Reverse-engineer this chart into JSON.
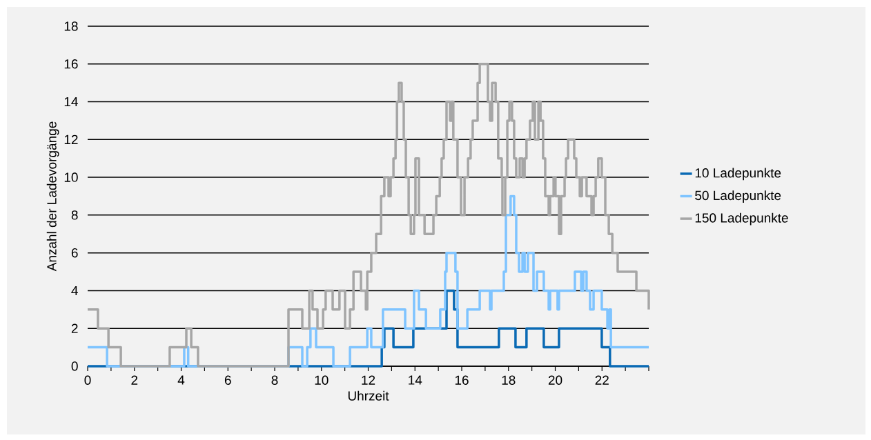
{
  "chart_data": {
    "type": "step",
    "xlabel": "Uhrzeit",
    "ylabel": "Anzahl der Ladevorgänge",
    "xlim": [
      0,
      24
    ],
    "ylim": [
      0,
      18
    ],
    "xticks": [
      0,
      {
        "value": 1,
        "label": null
      },
      2,
      {
        "value": 3,
        "label": null
      },
      4,
      {
        "value": 5,
        "label": null
      },
      6,
      {
        "value": 7,
        "label": null
      },
      8,
      {
        "value": 9,
        "label": null
      },
      10,
      {
        "value": 11,
        "label": null
      },
      12,
      {
        "value": 13,
        "label": null
      },
      14,
      {
        "value": 15,
        "label": null
      },
      16,
      {
        "value": 17,
        "label": null
      },
      18,
      {
        "value": 19,
        "label": null
      },
      20,
      {
        "value": 21,
        "label": null
      },
      22,
      {
        "value": 23,
        "label": null
      },
      {
        "value": 24,
        "label": null
      }
    ],
    "yticks": [
      0,
      2,
      4,
      6,
      8,
      10,
      12,
      14,
      16,
      18
    ],
    "grid": "y",
    "legend": "right",
    "marker": "none",
    "line_style": "solid",
    "series": [
      {
        "name": "10 Ladepunkte",
        "color": "#0a6ab4",
        "x": [
          0,
          12.58,
          12.69,
          13.08,
          13.93,
          15.35,
          15.67,
          15.82,
          17.59,
          18.3,
          18.77,
          19.51,
          20.16,
          21.99,
          22.34,
          24
        ],
        "values": [
          0,
          1,
          2,
          1,
          2,
          4,
          3,
          1,
          2,
          1,
          2,
          1,
          2,
          1,
          0,
          0
        ]
      },
      {
        "name": "50 Ladepunkte",
        "color": "#7fc4ff",
        "x": [
          0,
          0.83,
          4.13,
          4.3,
          8.59,
          9.18,
          9.39,
          9.53,
          9.77,
          10.51,
          11.22,
          11.96,
          12.13,
          12.63,
          13.58,
          13.96,
          14.17,
          14.47,
          15.08,
          15.29,
          15.35,
          15.73,
          15.82,
          16.24,
          16.77,
          17.21,
          17.27,
          17.8,
          17.89,
          18.09,
          18.24,
          18.33,
          18.45,
          18.6,
          18.69,
          18.83,
          19.07,
          19.22,
          19.51,
          19.72,
          19.78,
          20.1,
          20.16,
          20.84,
          21.11,
          21.2,
          21.34,
          21.49,
          21.64,
          21.99,
          22.23,
          22.32,
          22.38,
          24
        ],
        "values": [
          1,
          0,
          1,
          0,
          1,
          0,
          1,
          2,
          1,
          0,
          1,
          2,
          1,
          3,
          2,
          4,
          3,
          2,
          3,
          5,
          6,
          5,
          2,
          3,
          4,
          3,
          4,
          5,
          8,
          9,
          8,
          6,
          5,
          6,
          5,
          6,
          4,
          5,
          4,
          3,
          4,
          3,
          4,
          5,
          4,
          5,
          4,
          3,
          4,
          3,
          2,
          3,
          1,
          1
        ]
      },
      {
        "name": "150 Ladepunkte",
        "color": "#a6a6a6",
        "x": [
          0,
          0.44,
          0.89,
          1.42,
          3.51,
          4.22,
          4.43,
          4.72,
          8.59,
          9.18,
          9.48,
          9.62,
          9.83,
          10.07,
          10.18,
          10.48,
          10.77,
          11.01,
          11.22,
          11.37,
          11.69,
          11.9,
          11.96,
          12.13,
          12.34,
          12.55,
          12.69,
          12.87,
          12.96,
          13.08,
          13.17,
          13.23,
          13.31,
          13.43,
          13.52,
          13.61,
          13.73,
          13.82,
          13.96,
          14.02,
          14.17,
          14.41,
          14.79,
          14.91,
          15.06,
          15.14,
          15.23,
          15.35,
          15.5,
          15.56,
          15.64,
          15.82,
          15.97,
          16.12,
          16.27,
          16.38,
          16.47,
          16.68,
          16.77,
          17.12,
          17.21,
          17.3,
          17.45,
          17.56,
          17.71,
          17.74,
          17.86,
          17.95,
          18.04,
          18.15,
          18.24,
          18.33,
          18.48,
          18.6,
          18.69,
          18.77,
          18.92,
          19.04,
          19.13,
          19.28,
          19.37,
          19.48,
          19.57,
          19.72,
          19.78,
          19.93,
          20.01,
          20.16,
          20.25,
          20.4,
          20.46,
          20.55,
          20.81,
          20.9,
          21.05,
          21.14,
          21.34,
          21.55,
          21.64,
          21.73,
          21.84,
          21.99,
          22.14,
          22.29,
          22.44,
          22.67,
          23.47,
          24
        ],
        "values": [
          3,
          2,
          1,
          0,
          1,
          2,
          1,
          0,
          3,
          2,
          4,
          3,
          2,
          3,
          4,
          3,
          4,
          2,
          3,
          5,
          4,
          3,
          5,
          6,
          7,
          9,
          10,
          9,
          10,
          11,
          12,
          14,
          15,
          14,
          12,
          10,
          8,
          7,
          8,
          11,
          8,
          7,
          8,
          9,
          10,
          11,
          12,
          14,
          13,
          14,
          12,
          10,
          8,
          10,
          11,
          12,
          13,
          15,
          16,
          14,
          13,
          15,
          14,
          11,
          10,
          8,
          10,
          13,
          14,
          13,
          11,
          10,
          11,
          10,
          11,
          12,
          13,
          14,
          12,
          14,
          13,
          11,
          9,
          8,
          9,
          10,
          9,
          7,
          9,
          10,
          11,
          12,
          11,
          10,
          9,
          10,
          9,
          8,
          9,
          10,
          11,
          10,
          8,
          7,
          6,
          5,
          4,
          3
        ]
      }
    ]
  }
}
